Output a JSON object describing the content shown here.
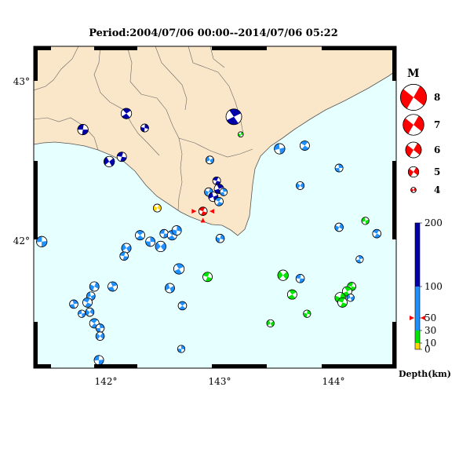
{
  "title": "Period:2004/07/06 00:00--2014/07/06 05:22",
  "axes": {
    "lon_ticks": [
      "142°",
      "143°",
      "144°"
    ],
    "lat_ticks": [
      "43°",
      "42°"
    ]
  },
  "magnitude_legend": {
    "title": "M",
    "items": [
      {
        "label": "8",
        "m": 8
      },
      {
        "label": "7",
        "m": 7
      },
      {
        "label": "6",
        "m": 6
      },
      {
        "label": "5",
        "m": 5
      },
      {
        "label": "4",
        "m": 4
      }
    ]
  },
  "depth_scale": {
    "title": "Depth(km)",
    "max": 200,
    "ticks": [
      {
        "label": "200",
        "value": 200
      },
      {
        "label": "100",
        "value": 100
      },
      {
        "label": "50",
        "value": 50
      },
      {
        "label": "30",
        "value": 30
      },
      {
        "label": "10",
        "value": 10
      },
      {
        "label": "0",
        "value": 0
      }
    ],
    "bands": [
      {
        "from": 0,
        "to": 10,
        "color": "#ffd700"
      },
      {
        "from": 10,
        "to": 30,
        "color": "#00e600"
      },
      {
        "from": 30,
        "to": 100,
        "color": "#1e90ff"
      },
      {
        "from": 100,
        "to": 200,
        "color": "#0000aa"
      }
    ],
    "marker_value": 50
  },
  "colors": {
    "land": "#fae6c8",
    "sea": "#e6ffff",
    "very_shallow": "#ffd700",
    "shallow": "#00e600",
    "intermediate": "#1e90ff",
    "deep": "#0000aa",
    "target_event": "#ff0000",
    "frame": "#000000"
  },
  "target_event": {
    "lon": 142.93,
    "lat": 42.19,
    "magnitude": 5.0,
    "depth_band": "selected"
  },
  "events": [
    {
      "lon": 141.88,
      "lat": 42.7,
      "m": 5.0,
      "class": "deep"
    },
    {
      "lon": 142.26,
      "lat": 42.8,
      "m": 5.0,
      "class": "deep"
    },
    {
      "lon": 142.42,
      "lat": 42.71,
      "m": 4.5,
      "class": "deep"
    },
    {
      "lon": 142.11,
      "lat": 42.5,
      "m": 5.0,
      "class": "deep"
    },
    {
      "lon": 142.22,
      "lat": 42.53,
      "m": 4.8,
      "class": "deep"
    },
    {
      "lon": 143.2,
      "lat": 42.78,
      "m": 6.0,
      "class": "deep"
    },
    {
      "lon": 143.26,
      "lat": 42.67,
      "m": 4.0,
      "class": "shallow"
    },
    {
      "lon": 142.99,
      "lat": 42.51,
      "m": 4.5,
      "class": "intermediate"
    },
    {
      "lon": 143.05,
      "lat": 42.38,
      "m": 4.5,
      "class": "deep"
    },
    {
      "lon": 143.07,
      "lat": 42.33,
      "m": 4.8,
      "class": "deep"
    },
    {
      "lon": 142.98,
      "lat": 42.31,
      "m": 4.6,
      "class": "intermediate"
    },
    {
      "lon": 143.02,
      "lat": 42.28,
      "m": 4.8,
      "class": "deep"
    },
    {
      "lon": 143.07,
      "lat": 42.25,
      "m": 4.6,
      "class": "intermediate"
    },
    {
      "lon": 143.11,
      "lat": 42.31,
      "m": 4.4,
      "class": "intermediate"
    },
    {
      "lon": 142.53,
      "lat": 42.21,
      "m": 4.5,
      "class": "very_shallow"
    },
    {
      "lon": 143.6,
      "lat": 42.58,
      "m": 5.0,
      "class": "intermediate"
    },
    {
      "lon": 143.82,
      "lat": 42.6,
      "m": 4.8,
      "class": "intermediate"
    },
    {
      "lon": 144.12,
      "lat": 42.46,
      "m": 4.5,
      "class": "intermediate"
    },
    {
      "lon": 143.78,
      "lat": 42.35,
      "m": 4.5,
      "class": "intermediate"
    },
    {
      "lon": 141.52,
      "lat": 42.0,
      "m": 5.0,
      "class": "intermediate"
    },
    {
      "lon": 142.38,
      "lat": 42.04,
      "m": 4.8,
      "class": "intermediate"
    },
    {
      "lon": 142.47,
      "lat": 42.0,
      "m": 4.8,
      "class": "intermediate"
    },
    {
      "lon": 142.56,
      "lat": 41.97,
      "m": 5.0,
      "class": "intermediate"
    },
    {
      "lon": 142.59,
      "lat": 42.05,
      "m": 4.6,
      "class": "intermediate"
    },
    {
      "lon": 142.66,
      "lat": 42.04,
      "m": 4.8,
      "class": "intermediate"
    },
    {
      "lon": 142.7,
      "lat": 42.07,
      "m": 4.8,
      "class": "intermediate"
    },
    {
      "lon": 142.26,
      "lat": 41.96,
      "m": 4.8,
      "class": "intermediate"
    },
    {
      "lon": 142.24,
      "lat": 41.91,
      "m": 4.6,
      "class": "intermediate"
    },
    {
      "lon": 142.72,
      "lat": 41.83,
      "m": 5.0,
      "class": "intermediate"
    },
    {
      "lon": 143.08,
      "lat": 42.02,
      "m": 4.6,
      "class": "intermediate"
    },
    {
      "lon": 142.64,
      "lat": 41.71,
      "m": 4.8,
      "class": "intermediate"
    },
    {
      "lon": 142.97,
      "lat": 41.78,
      "m": 4.8,
      "class": "shallow"
    },
    {
      "lon": 142.14,
      "lat": 41.72,
      "m": 4.8,
      "class": "intermediate"
    },
    {
      "lon": 141.98,
      "lat": 41.72,
      "m": 4.8,
      "class": "intermediate"
    },
    {
      "lon": 141.95,
      "lat": 41.66,
      "m": 4.6,
      "class": "intermediate"
    },
    {
      "lon": 141.92,
      "lat": 41.62,
      "m": 4.8,
      "class": "intermediate"
    },
    {
      "lon": 141.8,
      "lat": 41.61,
      "m": 4.6,
      "class": "intermediate"
    },
    {
      "lon": 141.94,
      "lat": 41.56,
      "m": 4.6,
      "class": "intermediate"
    },
    {
      "lon": 141.87,
      "lat": 41.55,
      "m": 4.4,
      "class": "intermediate"
    },
    {
      "lon": 141.98,
      "lat": 41.49,
      "m": 4.8,
      "class": "intermediate"
    },
    {
      "lon": 142.03,
      "lat": 41.46,
      "m": 4.6,
      "class": "intermediate"
    },
    {
      "lon": 142.03,
      "lat": 41.41,
      "m": 4.6,
      "class": "intermediate"
    },
    {
      "lon": 142.02,
      "lat": 41.26,
      "m": 4.8,
      "class": "intermediate"
    },
    {
      "lon": 142.75,
      "lat": 41.6,
      "m": 4.6,
      "class": "intermediate"
    },
    {
      "lon": 142.74,
      "lat": 41.33,
      "m": 4.4,
      "class": "intermediate"
    },
    {
      "lon": 143.63,
      "lat": 41.79,
      "m": 5.0,
      "class": "shallow"
    },
    {
      "lon": 143.78,
      "lat": 41.77,
      "m": 4.6,
      "class": "intermediate"
    },
    {
      "lon": 143.71,
      "lat": 41.67,
      "m": 4.8,
      "class": "shallow"
    },
    {
      "lon": 143.84,
      "lat": 41.55,
      "m": 4.4,
      "class": "shallow"
    },
    {
      "lon": 143.52,
      "lat": 41.49,
      "m": 4.4,
      "class": "shallow"
    },
    {
      "lon": 144.23,
      "lat": 41.72,
      "m": 4.6,
      "class": "shallow"
    },
    {
      "lon": 144.19,
      "lat": 41.69,
      "m": 4.8,
      "class": "shallow"
    },
    {
      "lon": 144.13,
      "lat": 41.65,
      "m": 5.0,
      "class": "shallow"
    },
    {
      "lon": 144.22,
      "lat": 41.65,
      "m": 4.4,
      "class": "intermediate"
    },
    {
      "lon": 144.15,
      "lat": 41.62,
      "m": 4.8,
      "class": "shallow"
    },
    {
      "lon": 144.3,
      "lat": 41.89,
      "m": 4.4,
      "class": "intermediate"
    },
    {
      "lon": 144.12,
      "lat": 42.09,
      "m": 4.6,
      "class": "intermediate"
    },
    {
      "lon": 144.35,
      "lat": 42.13,
      "m": 4.4,
      "class": "shallow"
    },
    {
      "lon": 144.45,
      "lat": 42.05,
      "m": 4.6,
      "class": "intermediate"
    }
  ]
}
